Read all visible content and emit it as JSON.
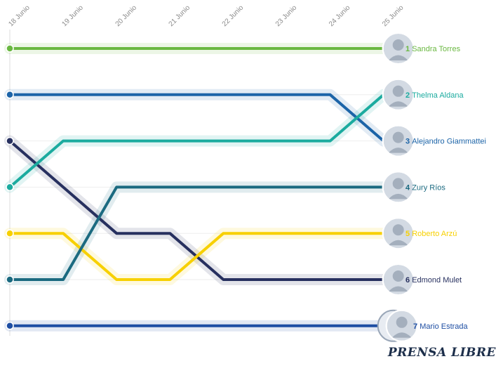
{
  "chart_data": {
    "type": "line",
    "subtype": "bump",
    "categories": [
      "18 Junio",
      "19 Junio",
      "20 Junio",
      "21 Junio",
      "22 Junio",
      "23 Junio",
      "24 Junio",
      "25 Junio"
    ],
    "y_axis": {
      "inverted": true,
      "range": [
        1,
        7
      ]
    },
    "series": [
      {
        "name": "Sandra Torres",
        "final_rank": 1,
        "color": "#6ab841",
        "values": [
          1,
          1,
          1,
          1,
          1,
          1,
          1,
          1
        ]
      },
      {
        "name": "Thelma Aldana",
        "final_rank": 2,
        "color": "#1bab9f",
        "values": [
          4,
          3,
          3,
          3,
          3,
          3,
          3,
          2
        ]
      },
      {
        "name": "Alejandro Giammattei",
        "final_rank": 3,
        "color": "#1c64a8",
        "values": [
          2,
          2,
          2,
          2,
          2,
          2,
          2,
          3
        ]
      },
      {
        "name": "Zury Ríos",
        "final_rank": 4,
        "color": "#1b6a80",
        "values": [
          6,
          6,
          4,
          4,
          4,
          4,
          4,
          4
        ]
      },
      {
        "name": "Roberto Arzú",
        "final_rank": 5,
        "color": "#f7d000",
        "values": [
          5,
          5,
          6,
          6,
          5,
          5,
          5,
          5
        ]
      },
      {
        "name": "Edmond Mulet",
        "final_rank": 6,
        "color": "#27305f",
        "values": [
          3,
          4,
          5,
          5,
          6,
          6,
          6,
          6
        ]
      },
      {
        "name": "Mario Estrada",
        "final_rank": 7,
        "color": "#1e4ea3",
        "values": [
          7,
          7,
          7,
          7,
          7,
          7,
          7,
          7
        ]
      }
    ]
  },
  "brand": {
    "name": "PRENSA LIBRE"
  }
}
